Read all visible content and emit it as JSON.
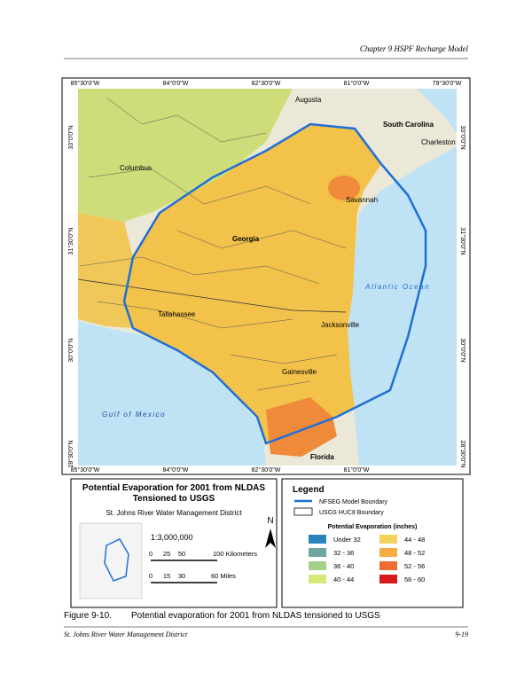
{
  "header": {
    "chapter": "Chapter 9 HSPF Recharge Model"
  },
  "map": {
    "top_coords": [
      "85°30'0\"W",
      "84°0'0\"W",
      "82°30'0\"W",
      "81°0'0\"W",
      "79°30'0\"W"
    ],
    "bottom_coords": [
      "85°30'0\"W",
      "84°0'0\"W",
      "82°30'0\"W",
      "81°0'0\"W"
    ],
    "left_coords": [
      "33°0'0\"N",
      "31°30'0\"N",
      "30°0'0\"N",
      "28°30'0\"N"
    ],
    "right_coords": [
      "33°0'0\"N",
      "31°30'0\"N",
      "30°0'0\"N",
      "28°30'0\"N"
    ],
    "places": [
      "Augusta",
      "South Carolina",
      "Charleston",
      "Columbus",
      "Savannah",
      "Georgia",
      "Atlantic Ocean",
      "Tallahassee",
      "Jacksonville",
      "Gainesville",
      "Gulf of Mexico",
      "Florida"
    ]
  },
  "title_panel": {
    "title_line1": "Potential Evaporation for 2001 from NLDAS",
    "title_line2": "Tensioned to USGS",
    "agency": "St. Johns River Water Management District",
    "north": "N",
    "scale": "1:3,000,000",
    "km_labels": [
      "0",
      "25",
      "50",
      "100 Kilometers"
    ],
    "mile_labels": [
      "0",
      "15",
      "30",
      "60 Miles"
    ]
  },
  "legend": {
    "title": "Legend",
    "boundary": "NFSEG Model Boundary",
    "huc": "USGS HUC8 Boundary",
    "pe_title": "Potential Evaporation (inches)",
    "items": [
      {
        "label": "Under 32",
        "color": "#2b83ba"
      },
      {
        "label": "32 - 36",
        "color": "#6ea7a0"
      },
      {
        "label": "36 - 40",
        "color": "#a6cf8a"
      },
      {
        "label": "40 - 44",
        "color": "#d6e87a"
      },
      {
        "label": "44 - 48",
        "color": "#f4d15a"
      },
      {
        "label": "48 - 52",
        "color": "#f5ac42"
      },
      {
        "label": "52 - 56",
        "color": "#ee6b32"
      },
      {
        "label": "56 - 60",
        "color": "#d7191c"
      }
    ]
  },
  "caption": {
    "number": "Figure 9-10.",
    "text": "Potential evaporation for 2001 from NLDAS tensioned to USGS"
  },
  "footer": {
    "left": "St. Johns River Water Management District",
    "right": "9-19"
  }
}
